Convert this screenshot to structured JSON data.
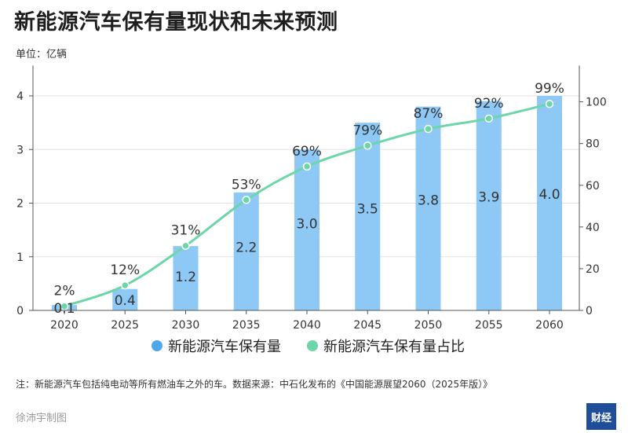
{
  "page": {
    "title": "新能源汽车保有量现状和未来预测",
    "unit": "单位：亿辆",
    "note": "注：新能源汽车包括纯电动等所有燃油车之外的车。数据来源：中石化发布的《中国能源展望2060（2025年版）》",
    "credit": "徐沛宇制图",
    "logo_text": "财经"
  },
  "chart_data": {
    "type": "bar",
    "categories": [
      "2020",
      "2025",
      "2030",
      "2035",
      "2040",
      "2045",
      "2050",
      "2055",
      "2060"
    ],
    "series": [
      {
        "name": "新能源汽车保有量",
        "type": "bar",
        "axis": "left",
        "values": [
          0.1,
          0.4,
          1.2,
          2.2,
          3.0,
          3.5,
          3.8,
          3.9,
          4.0
        ],
        "labels": [
          "0.1",
          "0.4",
          "1.2",
          "2.2",
          "3.0",
          "3.5",
          "3.8",
          "3.9",
          "4.0"
        ],
        "color": "#8ec8f5"
      },
      {
        "name": "新能源汽车保有量占比",
        "type": "line",
        "axis": "right",
        "values": [
          2,
          12,
          31,
          53,
          69,
          79,
          87,
          92,
          99
        ],
        "labels": [
          "2%",
          "12%",
          "31%",
          "53%",
          "69%",
          "79%",
          "87%",
          "92%",
          "99%"
        ],
        "color": "#6dd6a9"
      }
    ],
    "left_axis": {
      "ylim": [
        0,
        4.2
      ],
      "ticks": [
        "0",
        "1",
        "2",
        "3",
        "4"
      ],
      "tick_values": [
        0,
        1,
        2,
        3,
        4
      ]
    },
    "right_axis": {
      "ylim": [
        0,
        108
      ],
      "ticks": [
        "0",
        "20",
        "40",
        "60",
        "80",
        "100"
      ],
      "tick_values": [
        0,
        20,
        40,
        60,
        80,
        100
      ]
    },
    "grid": true,
    "legend": "bottom-center",
    "legend_colors": [
      "#4ea6ec",
      "#6dd6a9"
    ]
  }
}
